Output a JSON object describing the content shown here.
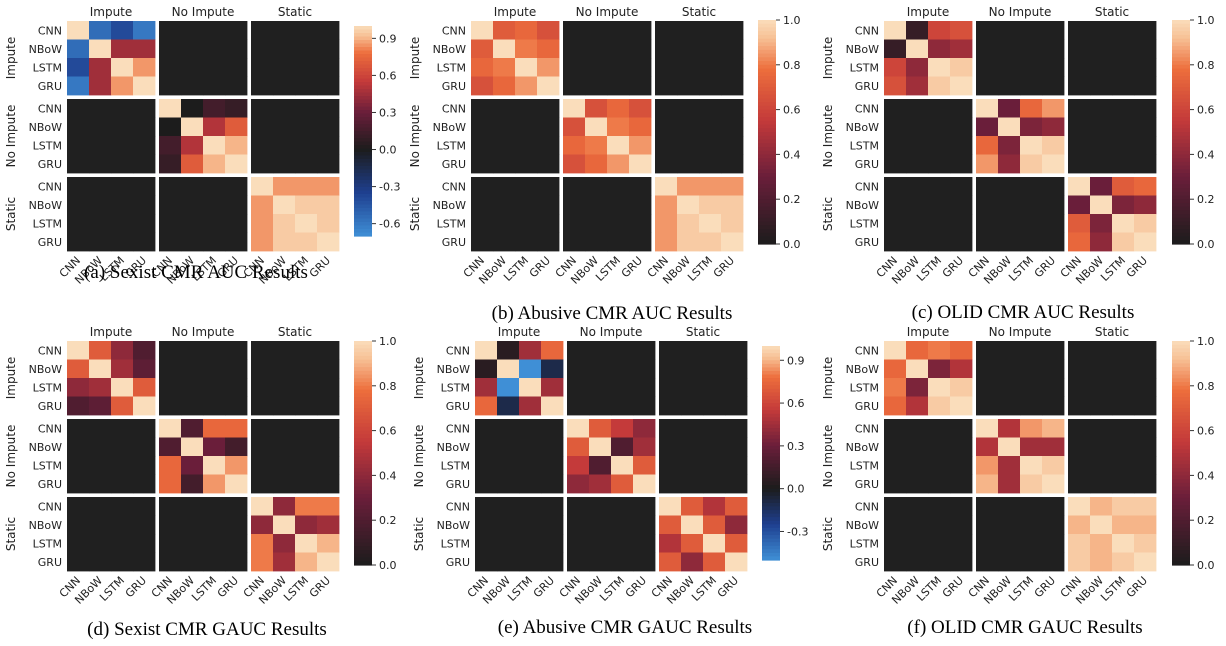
{
  "labels": {
    "row_models": [
      "CNN",
      "NBoW",
      "LSTM",
      "GRU"
    ],
    "groups": [
      "Impute",
      "No Impute",
      "Static"
    ]
  },
  "colors": {
    "neg_end": "#3f8fd6",
    "neg_mid": "#1e3f8f",
    "zero": "#1c1c1c",
    "low_pos": "#6a1e3a",
    "mid_pos": "#c43a3a",
    "high_pos": "#ed6e3c",
    "top_pos": "#f7c196",
    "max_pos": "#faddbb",
    "off_block": "#202020",
    "separator": "#ffffff"
  },
  "chart_data": [
    {
      "type": "heatmap",
      "title": "(a) Sexist CMR AUC Results",
      "row_groups": [
        "Impute",
        "No Impute",
        "Static"
      ],
      "col_groups": [
        "Impute",
        "No Impute",
        "Static"
      ],
      "row_labels": [
        "CNN",
        "NBoW",
        "LSTM",
        "GRU",
        "CNN",
        "NBoW",
        "LSTM",
        "GRU",
        "CNN",
        "NBoW",
        "LSTM",
        "GRU"
      ],
      "col_labels": [
        "CNN",
        "NBoW",
        "LSTM",
        "GRU",
        "CNN",
        "NBoW",
        "LSTM",
        "GRU",
        "CNN",
        "NBoW",
        "LSTM",
        "GRU"
      ],
      "colorbar": {
        "min": -0.7,
        "max": 1.0,
        "ticks": [
          0.9,
          0.6,
          0.3,
          0.0,
          -0.3,
          -0.6
        ]
      },
      "blocks": [
        [
          [
            1.0,
            -0.55,
            -0.4,
            -0.6
          ],
          [
            -0.55,
            1.0,
            0.45,
            0.45
          ],
          [
            -0.4,
            0.45,
            1.0,
            0.85
          ],
          [
            -0.6,
            0.45,
            0.85,
            1.0
          ]
        ],
        [
          [
            1.0,
            0.0,
            0.15,
            0.1
          ],
          [
            0.0,
            1.0,
            0.5,
            0.7
          ],
          [
            0.15,
            0.5,
            1.0,
            0.9
          ],
          [
            0.1,
            0.7,
            0.9,
            1.0
          ]
        ],
        [
          [
            1.0,
            0.85,
            0.85,
            0.85
          ],
          [
            0.85,
            1.0,
            0.95,
            0.95
          ],
          [
            0.85,
            0.95,
            1.0,
            0.95
          ],
          [
            0.85,
            0.95,
            0.95,
            1.0
          ]
        ]
      ]
    },
    {
      "type": "heatmap",
      "title": "(b) Abusive CMR AUC Results",
      "row_groups": [
        "Impute",
        "No Impute",
        "Static"
      ],
      "col_groups": [
        "Impute",
        "No Impute",
        "Static"
      ],
      "row_labels": [
        "CNN",
        "NBoW",
        "LSTM",
        "GRU",
        "CNN",
        "NBoW",
        "LSTM",
        "GRU",
        "CNN",
        "NBoW",
        "LSTM",
        "GRU"
      ],
      "col_labels": [
        "CNN",
        "NBoW",
        "LSTM",
        "GRU",
        "CNN",
        "NBoW",
        "LSTM",
        "GRU",
        "CNN",
        "NBoW",
        "LSTM",
        "GRU"
      ],
      "colorbar": {
        "min": 0.0,
        "max": 1.0,
        "ticks": [
          1.0,
          0.8,
          0.6,
          0.4,
          0.2,
          0.0
        ]
      },
      "blocks": [
        [
          [
            1.0,
            0.7,
            0.75,
            0.65
          ],
          [
            0.7,
            1.0,
            0.8,
            0.75
          ],
          [
            0.75,
            0.8,
            1.0,
            0.85
          ],
          [
            0.65,
            0.75,
            0.85,
            1.0
          ]
        ],
        [
          [
            1.0,
            0.65,
            0.75,
            0.65
          ],
          [
            0.65,
            1.0,
            0.8,
            0.75
          ],
          [
            0.75,
            0.8,
            1.0,
            0.85
          ],
          [
            0.65,
            0.75,
            0.85,
            1.0
          ]
        ],
        [
          [
            1.0,
            0.85,
            0.85,
            0.85
          ],
          [
            0.85,
            1.0,
            0.95,
            0.95
          ],
          [
            0.85,
            0.95,
            1.0,
            0.95
          ],
          [
            0.85,
            0.95,
            0.95,
            1.0
          ]
        ]
      ]
    },
    {
      "type": "heatmap",
      "title": "(c) OLID CMR AUC Results",
      "row_groups": [
        "Impute",
        "No Impute",
        "Static"
      ],
      "col_groups": [
        "Impute",
        "No Impute",
        "Static"
      ],
      "row_labels": [
        "CNN",
        "NBoW",
        "LSTM",
        "GRU",
        "CNN",
        "NBoW",
        "LSTM",
        "GRU",
        "CNN",
        "NBoW",
        "LSTM",
        "GRU"
      ],
      "col_labels": [
        "CNN",
        "NBoW",
        "LSTM",
        "GRU",
        "CNN",
        "NBoW",
        "LSTM",
        "GRU",
        "CNN",
        "NBoW",
        "LSTM",
        "GRU"
      ],
      "colorbar": {
        "min": 0.0,
        "max": 1.0,
        "ticks": [
          1.0,
          0.8,
          0.6,
          0.4,
          0.2,
          0.0
        ]
      },
      "blocks": [
        [
          [
            1.0,
            0.1,
            0.6,
            0.65
          ],
          [
            0.1,
            1.0,
            0.4,
            0.45
          ],
          [
            0.6,
            0.4,
            1.0,
            0.95
          ],
          [
            0.65,
            0.45,
            0.95,
            1.0
          ]
        ],
        [
          [
            1.0,
            0.3,
            0.75,
            0.85
          ],
          [
            0.3,
            1.0,
            0.35,
            0.4
          ],
          [
            0.75,
            0.35,
            1.0,
            0.95
          ],
          [
            0.85,
            0.4,
            0.95,
            1.0
          ]
        ],
        [
          [
            1.0,
            0.3,
            0.7,
            0.75
          ],
          [
            0.3,
            1.0,
            0.35,
            0.4
          ],
          [
            0.7,
            0.35,
            1.0,
            0.95
          ],
          [
            0.75,
            0.4,
            0.95,
            1.0
          ]
        ]
      ]
    },
    {
      "type": "heatmap",
      "title": "(d) Sexist CMR GAUC Results",
      "row_groups": [
        "Impute",
        "No Impute",
        "Static"
      ],
      "col_groups": [
        "Impute",
        "No Impute",
        "Static"
      ],
      "row_labels": [
        "CNN",
        "NBoW",
        "LSTM",
        "GRU",
        "CNN",
        "NBoW",
        "LSTM",
        "GRU",
        "CNN",
        "NBoW",
        "LSTM",
        "GRU"
      ],
      "col_labels": [
        "CNN",
        "NBoW",
        "LSTM",
        "GRU",
        "CNN",
        "NBoW",
        "LSTM",
        "GRU",
        "CNN",
        "NBoW",
        "LSTM",
        "GRU"
      ],
      "colorbar": {
        "min": 0.0,
        "max": 1.0,
        "ticks": [
          1.0,
          0.8,
          0.6,
          0.4,
          0.2,
          0.0
        ]
      },
      "blocks": [
        [
          [
            1.0,
            0.7,
            0.4,
            0.2
          ],
          [
            0.7,
            1.0,
            0.45,
            0.25
          ],
          [
            0.4,
            0.45,
            1.0,
            0.7
          ],
          [
            0.2,
            0.25,
            0.7,
            1.0
          ]
        ],
        [
          [
            1.0,
            0.2,
            0.75,
            0.75
          ],
          [
            0.2,
            1.0,
            0.3,
            0.15
          ],
          [
            0.75,
            0.3,
            1.0,
            0.85
          ],
          [
            0.75,
            0.15,
            0.85,
            1.0
          ]
        ],
        [
          [
            1.0,
            0.4,
            0.8,
            0.8
          ],
          [
            0.4,
            1.0,
            0.4,
            0.45
          ],
          [
            0.8,
            0.4,
            1.0,
            0.9
          ],
          [
            0.8,
            0.45,
            0.9,
            1.0
          ]
        ]
      ]
    },
    {
      "type": "heatmap",
      "title": "(e) Abusive CMR GAUC Results",
      "row_groups": [
        "Impute",
        "No Impute",
        "Static"
      ],
      "col_groups": [
        "Impute",
        "No Impute",
        "Static"
      ],
      "row_labels": [
        "CNN",
        "NBoW",
        "LSTM",
        "GRU",
        "CNN",
        "NBoW",
        "LSTM",
        "GRU",
        "CNN",
        "NBoW",
        "LSTM",
        "GRU"
      ],
      "col_labels": [
        "CNN",
        "NBoW",
        "LSTM",
        "GRU",
        "CNN",
        "NBoW",
        "LSTM",
        "GRU",
        "CNN",
        "NBoW",
        "LSTM",
        "GRU"
      ],
      "colorbar": {
        "min": -0.5,
        "max": 1.0,
        "ticks": [
          0.9,
          0.6,
          0.3,
          0.0,
          -0.3
        ]
      },
      "blocks": [
        [
          [
            1.0,
            0.05,
            0.45,
            0.75
          ],
          [
            0.05,
            1.0,
            -0.55,
            -0.1
          ],
          [
            0.45,
            -0.55,
            1.0,
            0.45
          ],
          [
            0.75,
            -0.1,
            0.45,
            1.0
          ]
        ],
        [
          [
            1.0,
            0.7,
            0.55,
            0.4
          ],
          [
            0.7,
            1.0,
            0.2,
            0.45
          ],
          [
            0.55,
            0.2,
            1.0,
            0.7
          ],
          [
            0.4,
            0.45,
            0.7,
            1.0
          ]
        ],
        [
          [
            1.0,
            0.7,
            0.5,
            0.7
          ],
          [
            0.7,
            1.0,
            0.7,
            0.4
          ],
          [
            0.5,
            0.7,
            1.0,
            0.7
          ],
          [
            0.7,
            0.4,
            0.7,
            1.0
          ]
        ]
      ]
    },
    {
      "type": "heatmap",
      "title": "(f) OLID CMR GAUC Results",
      "row_groups": [
        "Impute",
        "No Impute",
        "Static"
      ],
      "col_groups": [
        "Impute",
        "No Impute",
        "Static"
      ],
      "row_labels": [
        "CNN",
        "NBoW",
        "LSTM",
        "GRU",
        "CNN",
        "NBoW",
        "LSTM",
        "GRU",
        "CNN",
        "NBoW",
        "LSTM",
        "GRU"
      ],
      "col_labels": [
        "CNN",
        "NBoW",
        "LSTM",
        "GRU",
        "CNN",
        "NBoW",
        "LSTM",
        "GRU",
        "CNN",
        "NBoW",
        "LSTM",
        "GRU"
      ],
      "colorbar": {
        "min": 0.0,
        "max": 1.0,
        "ticks": [
          1.0,
          0.8,
          0.6,
          0.4,
          0.2,
          0.0
        ]
      },
      "blocks": [
        [
          [
            1.0,
            0.75,
            0.8,
            0.75
          ],
          [
            0.75,
            1.0,
            0.35,
            0.5
          ],
          [
            0.8,
            0.35,
            1.0,
            0.95
          ],
          [
            0.75,
            0.5,
            0.95,
            1.0
          ]
        ],
        [
          [
            1.0,
            0.5,
            0.85,
            0.9
          ],
          [
            0.5,
            1.0,
            0.45,
            0.45
          ],
          [
            0.85,
            0.45,
            1.0,
            0.95
          ],
          [
            0.9,
            0.45,
            0.95,
            1.0
          ]
        ],
        [
          [
            1.0,
            0.9,
            0.95,
            0.95
          ],
          [
            0.9,
            1.0,
            0.9,
            0.9
          ],
          [
            0.95,
            0.9,
            1.0,
            0.95
          ],
          [
            0.95,
            0.9,
            0.95,
            1.0
          ]
        ]
      ]
    }
  ]
}
